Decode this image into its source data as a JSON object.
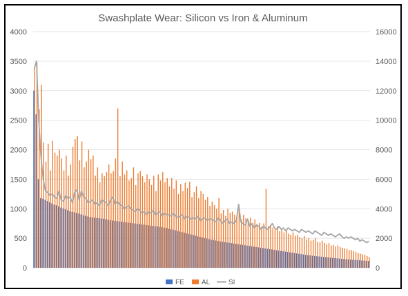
{
  "chart_data": {
    "type": "bar",
    "title": "Swashplate Wear: Silicon vs Iron & Aluminum",
    "xlabel": "",
    "ylabel": "",
    "y2label": "",
    "ylim": [
      0,
      4000
    ],
    "y2lim": [
      0,
      16000
    ],
    "yticks": [
      "0",
      "500",
      "1000",
      "1500",
      "2000",
      "2500",
      "3000",
      "3500",
      "4000"
    ],
    "y2ticks": [
      "0",
      "2000",
      "4000",
      "6000",
      "8000",
      "10000",
      "12000",
      "14000",
      "16000"
    ],
    "grid": true,
    "legend_position": "bottom",
    "categories_count": 150,
    "series": [
      {
        "name": "FE",
        "type": "bar",
        "axis": "left",
        "color": "#4472C4",
        "values": [
          3000,
          2600,
          1500,
          1180,
          1170,
          1150,
          1130,
          1110,
          1090,
          1070,
          1060,
          1040,
          1020,
          1005,
          990,
          975,
          960,
          950,
          940,
          930,
          920,
          905,
          890,
          880,
          870,
          860,
          855,
          850,
          845,
          840,
          835,
          830,
          825,
          815,
          810,
          800,
          795,
          790,
          785,
          780,
          775,
          770,
          765,
          760,
          755,
          750,
          745,
          740,
          735,
          730,
          725,
          720,
          715,
          710,
          705,
          700,
          695,
          690,
          680,
          675,
          665,
          655,
          645,
          635,
          625,
          615,
          605,
          595,
          585,
          575,
          565,
          555,
          545,
          535,
          525,
          515,
          505,
          495,
          485,
          475,
          470,
          462,
          455,
          448,
          442,
          436,
          430,
          424,
          418,
          412,
          406,
          400,
          394,
          388,
          382,
          376,
          370,
          364,
          358,
          352,
          346,
          340,
          334,
          328,
          322,
          316,
          310,
          304,
          298,
          292,
          286,
          280,
          274,
          268,
          262,
          256,
          250,
          244,
          238,
          232,
          226,
          220,
          215,
          210,
          205,
          200,
          196,
          192,
          188,
          184,
          180,
          176,
          172,
          168,
          164,
          160,
          156,
          152,
          148,
          145,
          142,
          139,
          136,
          133,
          130,
          127,
          124,
          121,
          118,
          115
        ]
      },
      {
        "name": "AL",
        "type": "bar",
        "axis": "left",
        "color": "#ED7D31",
        "values": [
          3400,
          3480,
          2680,
          3100,
          2120,
          1800,
          2100,
          1650,
          2150,
          1950,
          1900,
          2000,
          1850,
          1650,
          1900,
          1560,
          1750,
          2050,
          2180,
          2230,
          1820,
          2140,
          1700,
          1800,
          2000,
          1840,
          1900,
          1560,
          1700,
          1450,
          1600,
          1550,
          1620,
          1750,
          1600,
          1640,
          1850,
          2700,
          1550,
          1800,
          1580,
          1650,
          1480,
          1520,
          1700,
          1400,
          1600,
          1640,
          1550,
          1450,
          1580,
          1500,
          1400,
          1560,
          1300,
          1580,
          1480,
          1620,
          1450,
          1520,
          1380,
          1520,
          1340,
          1480,
          1250,
          1420,
          1300,
          1440,
          1350,
          1460,
          1200,
          1280,
          1380,
          1180,
          1300,
          1250,
          1150,
          1200,
          1050,
          1120,
          1060,
          1000,
          1180,
          920,
          980,
          880,
          1000,
          930,
          950,
          900,
          860,
          1000,
          820,
          900,
          840,
          780,
          850,
          760,
          820,
          740,
          760,
          700,
          750,
          1340,
          700,
          720,
          680,
          650,
          700,
          620,
          660,
          600,
          630,
          580,
          560,
          600,
          540,
          560,
          520,
          500,
          540,
          480,
          500,
          460,
          470,
          500,
          440,
          430,
          460,
          420,
          400,
          420,
          380,
          390,
          360,
          380,
          350,
          340,
          330,
          320,
          300,
          300,
          280,
          270,
          250,
          240,
          230,
          220,
          200,
          180
        ]
      },
      {
        "name": "SI",
        "type": "line",
        "axis": "right",
        "color": "#A5A5A5",
        "values": [
          13500,
          14000,
          10000,
          7500,
          6000,
          5200,
          5100,
          4900,
          5000,
          4800,
          4700,
          5200,
          4600,
          4500,
          4900,
          4700,
          4800,
          4400,
          5100,
          5300,
          4600,
          5200,
          4800,
          4700,
          4400,
          4500,
          4600,
          4300,
          4400,
          4200,
          4600,
          4500,
          4400,
          4200,
          4600,
          4800,
          4300,
          4500,
          4300,
          4200,
          4000,
          4100,
          4200,
          4000,
          3900,
          3800,
          4000,
          3900,
          3700,
          3800,
          3600,
          3800,
          3700,
          3900,
          3600,
          3700,
          3800,
          3500,
          3700,
          3600,
          3600,
          3500,
          3700,
          3500,
          3400,
          3500,
          3600,
          3300,
          3500,
          3400,
          3300,
          3400,
          3300,
          3500,
          3200,
          3300,
          3400,
          3200,
          3300,
          3300,
          3200,
          3100,
          3400,
          3200,
          3000,
          3200,
          3300,
          3000,
          3100,
          3000,
          3200,
          4300,
          3100,
          3000,
          2900,
          3300,
          2800,
          3000,
          2700,
          2900,
          2800,
          2600,
          2800,
          2700,
          2600,
          2800,
          3000,
          2700,
          2600,
          2800,
          2600,
          2700,
          2500,
          2700,
          2600,
          2500,
          2600,
          2500,
          2400,
          2600,
          2500,
          2400,
          2500,
          2400,
          2300,
          2500,
          2400,
          2300,
          2200,
          2400,
          2300,
          2200,
          2300,
          2200,
          2100,
          2200,
          2300,
          2100,
          2000,
          2100,
          2000,
          2100,
          2000,
          1900,
          2000,
          1800,
          1900,
          1800,
          1700,
          1800
        ]
      }
    ]
  }
}
